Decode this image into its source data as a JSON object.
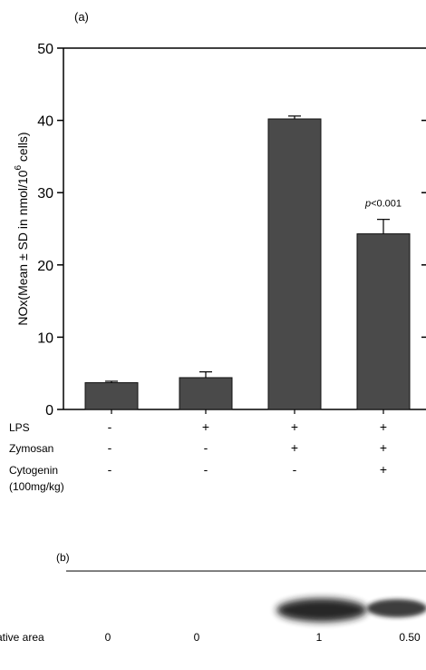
{
  "panel_a_label": "(a)",
  "panel_b_label": "(b)",
  "chart_data": {
    "type": "bar",
    "ylabel_main": "NOx(Mean ± SD in nmol/10",
    "ylabel_sup": "6",
    "ylabel_tail": " cells)",
    "ylim": [
      0,
      50
    ],
    "yticks": [
      0,
      10,
      20,
      30,
      40,
      50
    ],
    "grid": false,
    "values": [
      3.7,
      4.4,
      40.2,
      24.3
    ],
    "errors": [
      0.2,
      0.8,
      0.4,
      2.0
    ],
    "annotation": {
      "bar_index": 3,
      "text": "p<0.001"
    }
  },
  "treatments": [
    {
      "label": "LPS",
      "values": [
        "-",
        "+",
        "+",
        "+"
      ]
    },
    {
      "label": "Zymosan",
      "values": [
        "-",
        "-",
        "+",
        "+"
      ]
    },
    {
      "label": "Cytogenin",
      "values": [
        "-",
        "-",
        "-",
        "+"
      ]
    }
  ],
  "cytogenin_dose": "(100mg/kg)",
  "blot": {
    "row_label": "ative area",
    "relative_areas": [
      "0",
      "0",
      "1",
      "0.50"
    ],
    "band_intensity": [
      0,
      0,
      1,
      0.5
    ]
  }
}
